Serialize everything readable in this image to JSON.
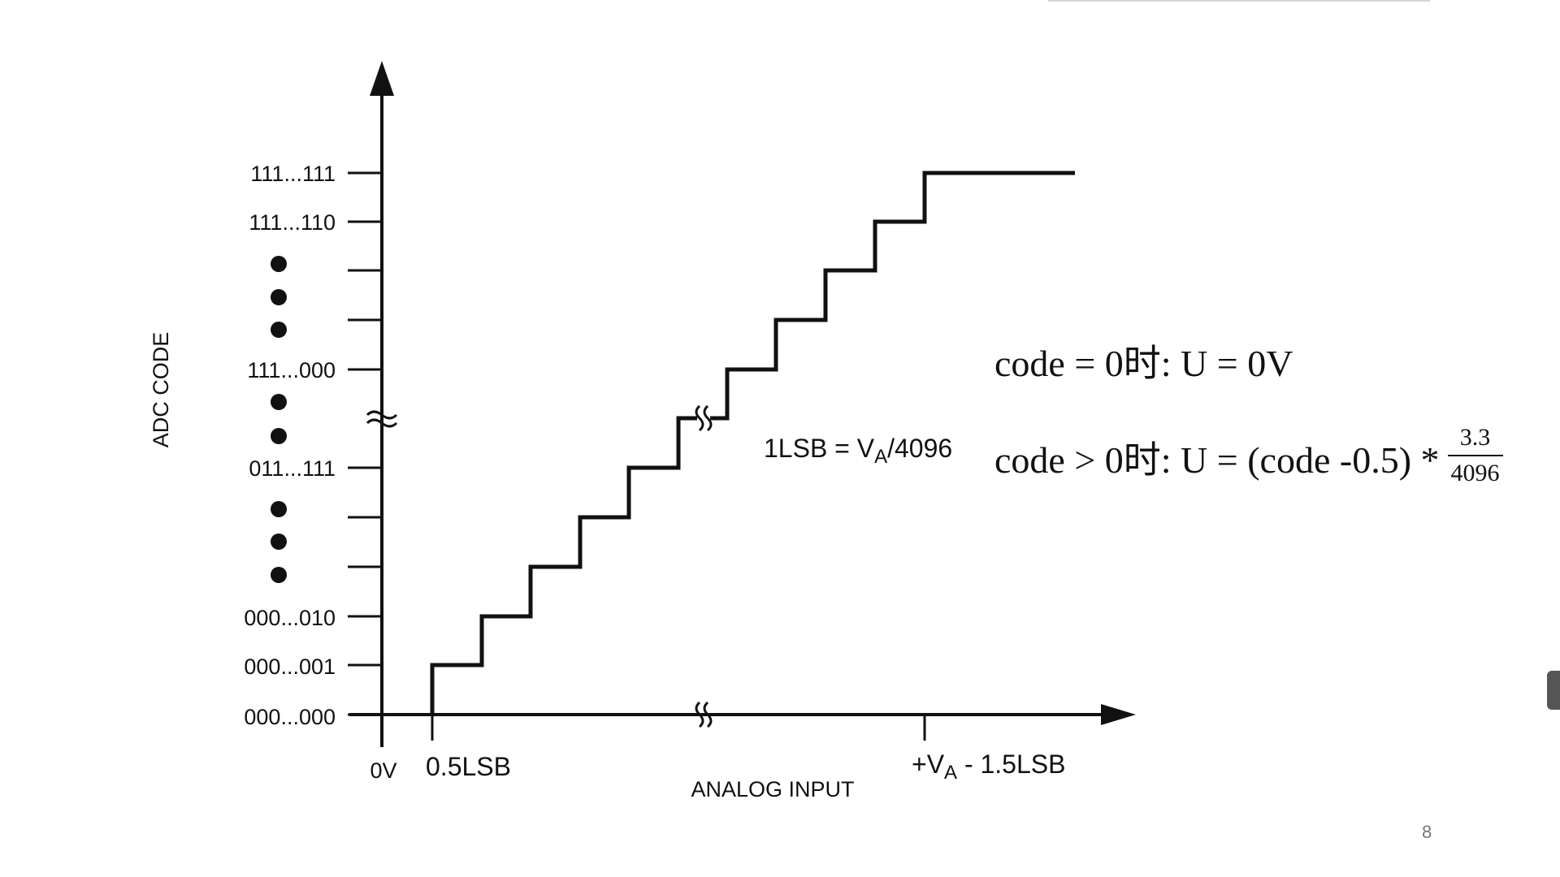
{
  "diagram": {
    "y_axis_title": "ADC CODE",
    "x_axis_title": "ANALOG INPUT",
    "y_tick_labels": [
      "111...111",
      "111...110",
      "111...000",
      "011...111",
      "000...010",
      "000...001",
      "000...000"
    ],
    "x_tick_labels": {
      "origin": "0V",
      "first": "0.5LSB",
      "last_prefix": "+V",
      "last_subscript": "A",
      "last_suffix": " - 1.5LSB"
    },
    "lsb_note": {
      "prefix": "1LSB = V",
      "subscript": "A",
      "suffix": "/4096"
    }
  },
  "formulas": {
    "line1": "code = 0时: U = 0V",
    "line2": "code > 0时: U = (code -0.5) *",
    "numerator": "3.3",
    "denominator": "4096"
  },
  "page_number": "8"
}
